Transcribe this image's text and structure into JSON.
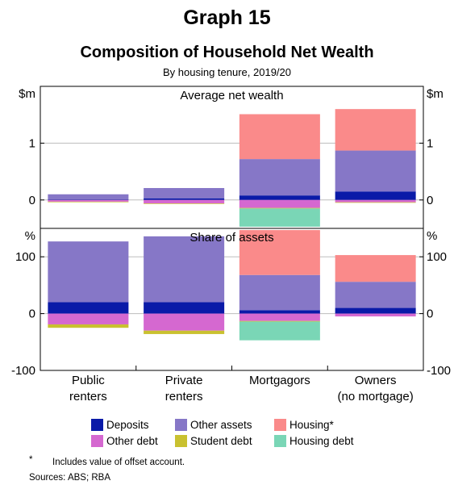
{
  "header": {
    "graph_label": "Graph 15",
    "title": "Composition of Household Net Wealth",
    "subtitle": "By housing tenure, 2019/20"
  },
  "colors": {
    "Deposits": "#0a1aa8",
    "Other assets": "#8677c7",
    "Housing*": "#fa8a8a",
    "Other debt": "#d568d0",
    "Student debt": "#c9c130",
    "Housing debt": "#7ad6b6"
  },
  "chart_data": {
    "type": "bar",
    "stacked": true,
    "categories": [
      "Public renters",
      "Private renters",
      "Mortgagors",
      "Owners (no mortgage)"
    ],
    "category_lines": [
      [
        "Public",
        "renters"
      ],
      [
        "Private",
        "renters"
      ],
      [
        "Mortgagors"
      ],
      [
        "Owners",
        "(no mortgage)"
      ]
    ],
    "panels": [
      {
        "title": "Average net wealth",
        "unit": "$m",
        "ylim": [
          -0.5,
          2
        ],
        "yticks": [
          0,
          1
        ],
        "tick_labels": [
          "0",
          "1"
        ],
        "series": [
          {
            "name": "Deposits",
            "values": [
              0.01,
              0.03,
              0.08,
              0.15
            ]
          },
          {
            "name": "Other assets",
            "values": [
              0.09,
              0.18,
              0.64,
              0.72
            ]
          },
          {
            "name": "Housing*",
            "values": [
              0.0,
              0.0,
              0.79,
              0.73
            ]
          },
          {
            "name": "Other debt",
            "values": [
              -0.03,
              -0.06,
              -0.14,
              -0.04
            ]
          },
          {
            "name": "Student debt",
            "values": [
              -0.01,
              -0.01,
              -0.01,
              -0.01
            ]
          },
          {
            "name": "Housing debt",
            "values": [
              0.0,
              0.0,
              -0.32,
              0.0
            ]
          }
        ]
      },
      {
        "title": "Share of assets",
        "unit": "%",
        "ylim": [
          -100,
          150
        ],
        "yticks": [
          -100,
          0,
          100
        ],
        "tick_labels": [
          "-100",
          "0",
          "100"
        ],
        "series": [
          {
            "name": "Deposits",
            "values": [
              20,
              20,
              6,
              10
            ]
          },
          {
            "name": "Other assets",
            "values": [
              107,
              116,
              62,
              46
            ]
          },
          {
            "name": "Housing*",
            "values": [
              0,
              0,
              79,
              47
            ]
          },
          {
            "name": "Other debt",
            "values": [
              -19,
              -30,
              -13,
              -5
            ]
          },
          {
            "name": "Student debt",
            "values": [
              -6,
              -6,
              -1,
              0
            ]
          },
          {
            "name": "Housing debt",
            "values": [
              0,
              0,
              -33,
              0
            ]
          }
        ]
      }
    ],
    "legend": [
      "Deposits",
      "Other assets",
      "Housing*",
      "Other debt",
      "Student debt",
      "Housing debt"
    ],
    "legend_position": "bottom"
  },
  "footnotes": {
    "marker": "*",
    "note": "Includes value of offset account.",
    "sources": "Sources: ABS; RBA"
  }
}
